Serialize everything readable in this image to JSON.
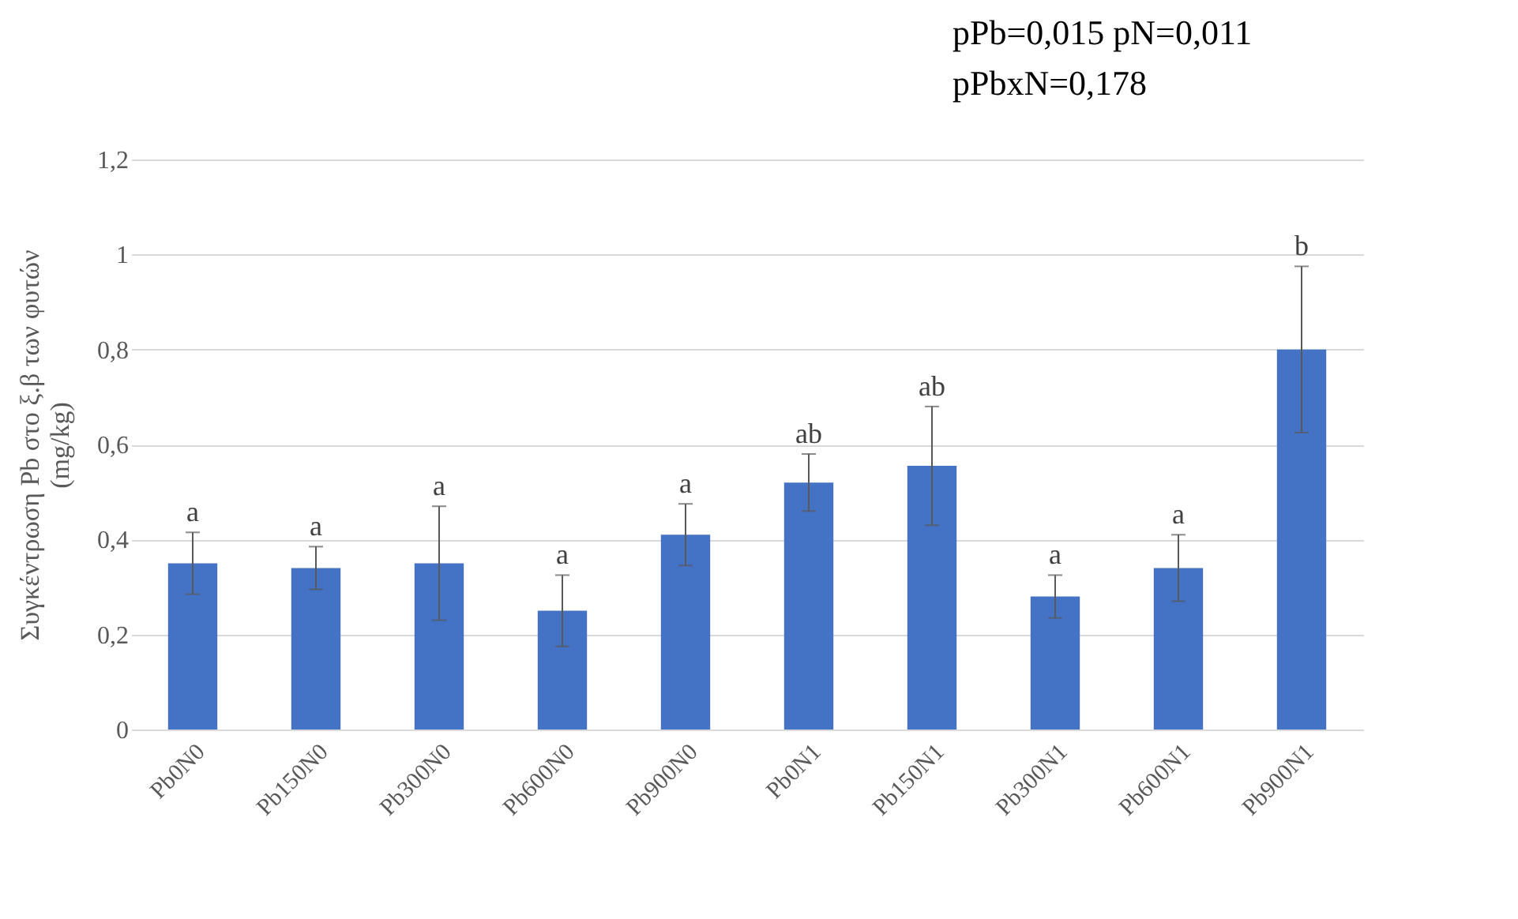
{
  "chart_data": {
    "type": "bar",
    "ylabel": "Συγκέντρωση Pb στο ξ.β των φυτών\n(mg/kg)",
    "categories": [
      "Pb0N0",
      "Pb150N0",
      "Pb300N0",
      "Pb600N0",
      "Pb900N0",
      "Pb0N1",
      "Pb150N1",
      "Pb300N1",
      "Pb600N1",
      "Pb900N1"
    ],
    "values": [
      0.35,
      0.34,
      0.35,
      0.25,
      0.41,
      0.52,
      0.555,
      0.28,
      0.34,
      0.8
    ],
    "errors": [
      0.065,
      0.045,
      0.12,
      0.075,
      0.065,
      0.06,
      0.125,
      0.045,
      0.07,
      0.175
    ],
    "color": "#4472c4",
    "ylim": [
      0,
      1.2
    ],
    "yticks": [
      0,
      {
        "value": 0.2,
        "label": "0,2"
      },
      {
        "value": 0.4,
        "label": "0,4"
      },
      {
        "value": 0.6,
        "label": "0,6"
      },
      {
        "value": 0.8,
        "label": "0,8"
      },
      1,
      {
        "value": 1.2,
        "label": "1,2"
      }
    ],
    "grid": "y",
    "annotations": [
      "pPb=0,015      pN=0,011",
      "pPbxN=0,178",
      {
        "text": "a",
        "x": "Pb0N0",
        "y": 0.415
      },
      {
        "text": "a",
        "x": "Pb150N0",
        "y": 0.385
      },
      {
        "text": "a",
        "x": "Pb300N0",
        "y": 0.47
      },
      {
        "text": "a",
        "x": "Pb600N0",
        "y": 0.325
      },
      {
        "text": "a",
        "x": "Pb900N0",
        "y": 0.475
      },
      {
        "text": "ab",
        "x": "Pb0N1",
        "y": 0.58
      },
      {
        "text": "ab",
        "x": "Pb150N1",
        "y": 0.68
      },
      {
        "text": "a",
        "x": "Pb300N1",
        "y": 0.325
      },
      {
        "text": "a",
        "x": "Pb600N1",
        "y": 0.41
      },
      {
        "text": "b",
        "x": "Pb900N1",
        "y": 0.975
      }
    ]
  }
}
